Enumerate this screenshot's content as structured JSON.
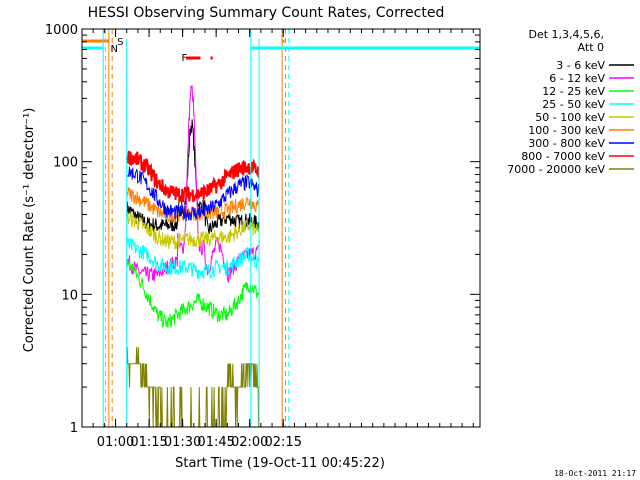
{
  "chart_data": {
    "type": "line",
    "title": "HESSI Observing Summary Count Rates, Corrected",
    "xlabel": "Start Time (19-Oct-11 00:45:22)",
    "ylabel": "Corrected Count Rate (s⁻¹ detector⁻¹)",
    "y_scale": "log",
    "ylim": [
      1,
      1000
    ],
    "xlim_minutes": [
      45,
      223
    ],
    "x_ticks": [
      {
        "label": "01:00",
        "min": 60
      },
      {
        "label": "01:15",
        "min": 75
      },
      {
        "label": "01:30",
        "min": 90
      },
      {
        "label": "01:45",
        "min": 105
      },
      {
        "label": "02:00",
        "min": 120
      },
      {
        "label": "02:15",
        "min": 135
      }
    ],
    "y_tick_labels": [
      {
        "label": "1",
        "value": 1
      },
      {
        "label": "10",
        "value": 10
      },
      {
        "label": "100",
        "value": 100
      },
      {
        "label": "1000",
        "value": 1000
      }
    ],
    "legend_title": [
      "Det 1,3,4,5,6,",
      "Att 0"
    ],
    "legend_placement": "right",
    "timestamp": "18-Oct-2011 21:17",
    "flags": [
      {
        "label": "S",
        "color": "#ff7f00"
      },
      {
        "label": "N",
        "color": "#00ffff"
      },
      {
        "label": "F",
        "color": "#ff0000"
      }
    ],
    "data_start_min": 65,
    "data_end_min": 124,
    "peak_min": 94,
    "series": [
      {
        "name": "3 - 6 keV",
        "color": "#000000",
        "values": [
          45,
          38,
          34,
          33,
          33,
          34,
          190,
          58,
          30,
          35,
          38,
          35,
          36,
          34
        ]
      },
      {
        "name": "6 - 12 keV",
        "color": "#ff00ff",
        "values": [
          18,
          15,
          14,
          14,
          16,
          18,
          350,
          27,
          15,
          25,
          14,
          18,
          20,
          21
        ]
      },
      {
        "name": "12 - 25 keV",
        "color": "#00ff00",
        "values": [
          18,
          14,
          10,
          7,
          6,
          7,
          8,
          9,
          8,
          7,
          7,
          9,
          12,
          10
        ]
      },
      {
        "name": "25 - 50 keV",
        "color": "#00ffff",
        "values": [
          24,
          22,
          20,
          17,
          16,
          16,
          16,
          15,
          15,
          16,
          16,
          18,
          20,
          17
        ]
      },
      {
        "name": "50 - 100 keV",
        "color": "#c8c800",
        "values": [
          38,
          35,
          31,
          27,
          25,
          25,
          26,
          26,
          26,
          27,
          27,
          30,
          33,
          29
        ]
      },
      {
        "name": "100 - 300 keV",
        "color": "#ff7f00",
        "values": [
          58,
          54,
          48,
          42,
          39,
          40,
          41,
          41,
          41,
          42,
          43,
          47,
          51,
          45
        ]
      },
      {
        "name": "300 - 800 keV",
        "color": "#0000ff",
        "values": [
          85,
          80,
          67,
          52,
          43,
          41,
          41,
          41,
          43,
          48,
          57,
          66,
          70,
          60
        ]
      },
      {
        "name": "800 - 7000 keV",
        "color": "#ff0000",
        "values": [
          110,
          104,
          90,
          70,
          60,
          57,
          57,
          57,
          60,
          67,
          78,
          88,
          92,
          85
        ]
      },
      {
        "name": "7000 - 20000 keV",
        "color": "#808000",
        "values": [
          3,
          3,
          2,
          2,
          1,
          1,
          1,
          1,
          1,
          1,
          2,
          2,
          3,
          2
        ]
      }
    ]
  }
}
